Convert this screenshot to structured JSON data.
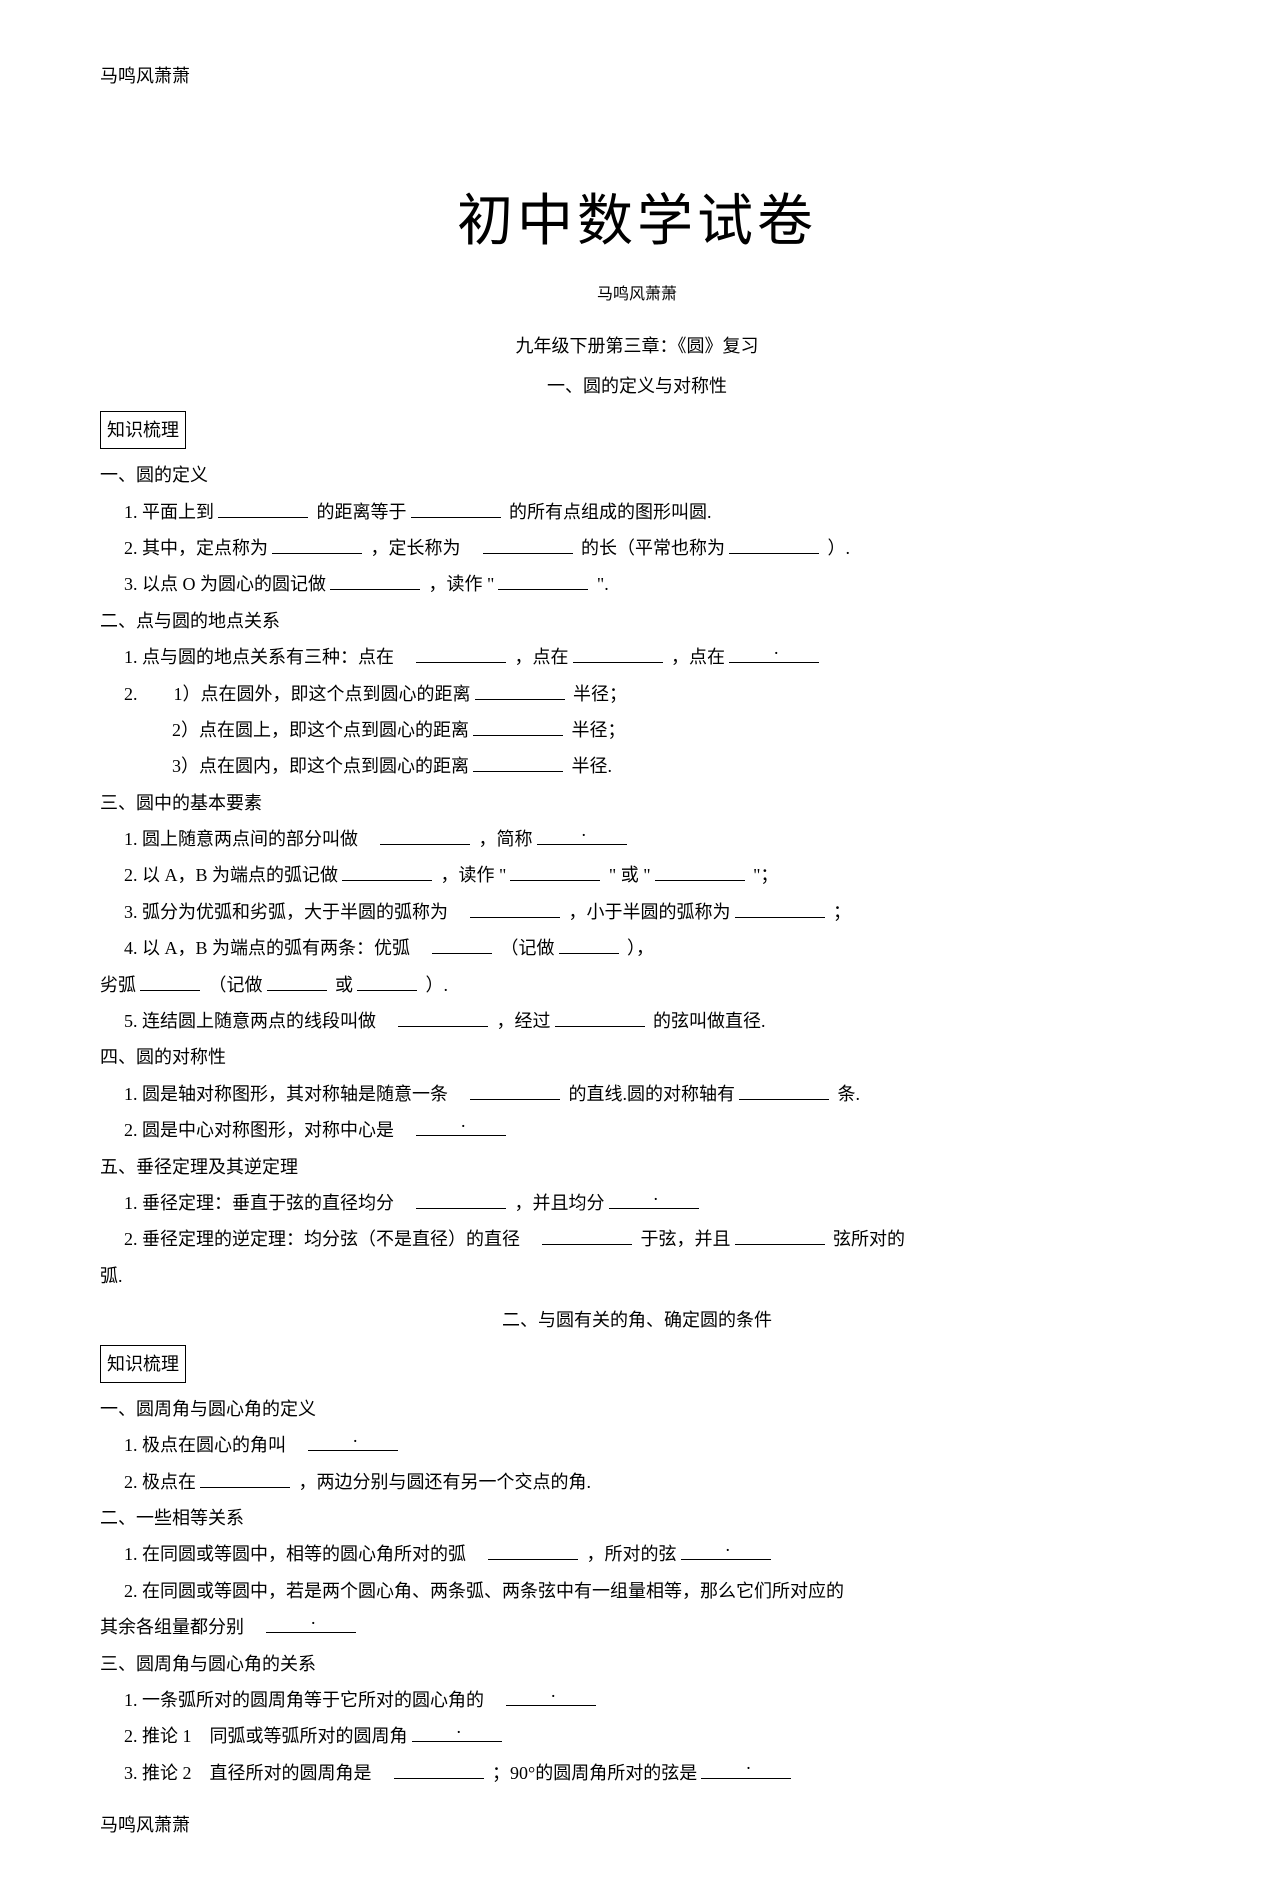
{
  "header_left": "马鸣风萧萧",
  "main_title": "初中数学试卷",
  "sub_author": "马鸣风萧萧",
  "chapter_title": "九年级下册第三章：《圆》复习",
  "section1_label": "一、圆的定义与对称性",
  "boxed_label": "知识梳理",
  "s1": {
    "title": "一、圆的定义",
    "i1_a": "1. 平面上到",
    "i1_b": "的距离等于",
    "i1_c": "的所有点组成的图形叫圆.",
    "i2_a": "2. 其中，定点称为",
    "i2_b": "，定长称为",
    "i2_c": "的长（平常也称为",
    "i2_d": "）.",
    "i3_a": "3. 以点 O 为圆心的圆记做",
    "i3_b": "，读作 \"",
    "i3_c": "\"."
  },
  "s2": {
    "title": "二、点与圆的地点关系",
    "i1_a": "1. 点与圆的地点关系有三种：点在",
    "i1_b": "，点在",
    "i1_c": "，点在",
    "i2_a": "2.　　1）点在圆外，即这个点到圆心的距离",
    "i2_b": "半径；",
    "i3_a": "2）点在圆上，即这个点到圆心的距离",
    "i3_b": "半径；",
    "i4_a": "3）点在圆内，即这个点到圆心的距离",
    "i4_b": "半径."
  },
  "s3": {
    "title": "三、圆中的基本要素",
    "i1_a": "1. 圆上随意两点间的部分叫做",
    "i1_b": "，简称",
    "i2_a": "2. 以 A，B 为端点的弧记做",
    "i2_b": "，读作 \"",
    "i2_c": "\" 或 \"",
    "i2_d": "\"；",
    "i3_a": "3. 弧分为优弧和劣弧，大于半圆的弧称为",
    "i3_b": "，小于半圆的弧称为",
    "i3_c": "；",
    "i4_a": "4. 以 A，B 为端点的弧有两条：优弧",
    "i4_b": "（记做",
    "i4_c": "），",
    "i5_a": "劣弧",
    "i5_b": "（记做",
    "i5_c": "或",
    "i5_d": "）.",
    "i6_a": "5. 连结圆上随意两点的线段叫做",
    "i6_b": "，经过",
    "i6_c": "的弦叫做直径."
  },
  "s4": {
    "title": "四、圆的对称性",
    "i1_a": "1. 圆是轴对称图形，其对称轴是随意一条",
    "i1_b": "的直线.圆的对称轴有",
    "i1_c": "条.",
    "i2_a": "2. 圆是中心对称图形，对称中心是"
  },
  "s5": {
    "title": "五、垂径定理及其逆定理",
    "i1_a": "1. 垂径定理：垂直于弦的直径均分",
    "i1_b": "，并且均分",
    "i2_a": "2. 垂径定理的逆定理：均分弦（不是直径）的直径",
    "i2_b": "于弦，并且",
    "i2_c": "弦所对的",
    "i3": "弧."
  },
  "section2_label": "二、与圆有关的角、确定圆的条件",
  "p2s1": {
    "title": "一、圆周角与圆心角的定义",
    "i1_a": "1. 极点在圆心的角叫",
    "i2_a": "2. 极点在",
    "i2_b": "，两边分别与圆还有另一个交点的角."
  },
  "p2s2": {
    "title": "二、一些相等关系",
    "i1_a": "1. 在同圆或等圆中，相等的圆心角所对的弧",
    "i1_b": "，所对的弦",
    "i2_a": "2. 在同圆或等圆中，若是两个圆心角、两条弧、两条弦中有一组量相等，那么它们所对应的",
    "i3_a": "其余各组量都分别"
  },
  "p2s3": {
    "title": "三、圆周角与圆心角的关系",
    "i1_a": "1. 一条弧所对的圆周角等于它所对的圆心角的",
    "i2_a": "2. 推论 1　同弧或等弧所对的圆周角",
    "i3_a": "3. 推论 2　直径所对的圆周角是",
    "i3_b": "；90°的圆周角所对的弦是"
  },
  "footer": "马鸣风萧萧"
}
